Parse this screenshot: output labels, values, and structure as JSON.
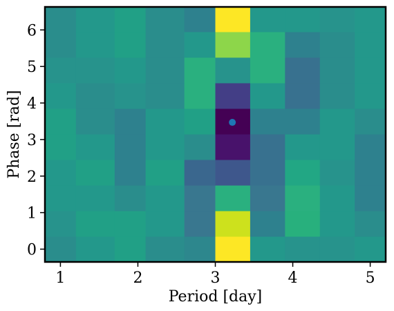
{
  "chart_data": {
    "type": "heatmap",
    "title": "",
    "xlabel": "Period [day]",
    "ylabel": "Phase [rad]",
    "x_ticks": [
      1,
      2,
      3,
      4,
      5
    ],
    "y_ticks": [
      0,
      1,
      2,
      3,
      4,
      5,
      6
    ],
    "xlim": [
      0.8,
      5.2
    ],
    "ylim": [
      -0.35,
      6.63
    ],
    "x_bin_edges": [
      0.8,
      1.2,
      1.7,
      2.1,
      2.6,
      3.0,
      3.45,
      3.9,
      4.35,
      4.8,
      5.2
    ],
    "y_bin_edges": [
      -0.35,
      0.35,
      1.05,
      1.75,
      2.45,
      3.15,
      3.85,
      4.55,
      5.25,
      5.95,
      6.63
    ],
    "colormap": "viridis",
    "cell_colors": [
      [
        "#2a8d8c",
        "#23988b",
        "#21a086",
        "#2a8d8c",
        "#2d878d",
        "#fde725",
        "#23988b",
        "#27938c",
        "#27938c",
        "#23988b"
      ],
      [
        "#27938c",
        "#21a086",
        "#21a086",
        "#23988b",
        "#39778f",
        "#cde11d",
        "#2e818e",
        "#28b07d",
        "#23988b",
        "#2a8d8c"
      ],
      [
        "#23988b",
        "#23988b",
        "#2a8d8c",
        "#23988b",
        "#39778f",
        "#2ab07f",
        "#39778f",
        "#2ab07f",
        "#23988b",
        "#2e818e"
      ],
      [
        "#23988b",
        "#21a086",
        "#2e818e",
        "#21a086",
        "#3a678e",
        "#3e578c",
        "#38718f",
        "#22a784",
        "#27938c",
        "#2e818e"
      ],
      [
        "#21a086",
        "#23988b",
        "#2e818e",
        "#23988b",
        "#2a8d8c",
        "#48126b",
        "#38718f",
        "#23988b",
        "#23988b",
        "#2e818e"
      ],
      [
        "#21a086",
        "#2a8d8c",
        "#2e818e",
        "#23988b",
        "#21a086",
        "#440154",
        "#2e818e",
        "#2e818e",
        "#23988b",
        "#2a8d8c"
      ],
      [
        "#23988b",
        "#2a8d8c",
        "#27938c",
        "#2a8d8c",
        "#2ab07f",
        "#433e86",
        "#23988b",
        "#38718f",
        "#2a8d8c",
        "#23988b"
      ],
      [
        "#27938c",
        "#27938c",
        "#23988b",
        "#2a8d8c",
        "#2ab07f",
        "#27938c",
        "#2ab07f",
        "#38718f",
        "#2a8d8c",
        "#23988b"
      ],
      [
        "#2a8d8c",
        "#23988b",
        "#21a086",
        "#2a8d8c",
        "#23988b",
        "#8dd64a",
        "#2ab07f",
        "#2e818e",
        "#2a8d8c",
        "#23988b"
      ],
      [
        "#2a8d8c",
        "#23988b",
        "#21a086",
        "#2a8d8c",
        "#2e818e",
        "#fde725",
        "#23988b",
        "#23988b",
        "#27938c",
        "#23988b"
      ]
    ],
    "marker": {
      "x": 3.22,
      "y": 3.47,
      "color": "#1f77b4"
    }
  }
}
